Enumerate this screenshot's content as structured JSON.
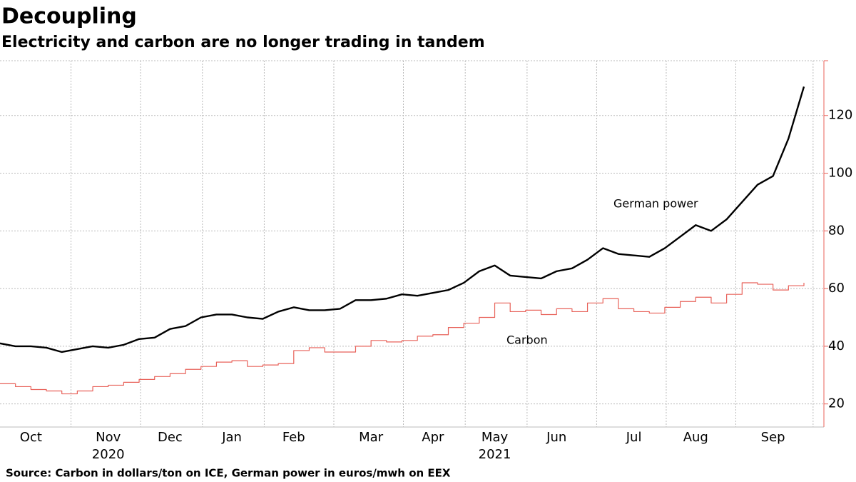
{
  "chart_data": {
    "type": "line",
    "title": "Decoupling",
    "subtitle": "Electricity and carbon are no longer trading in tandem",
    "source": "Source: Carbon in dollars/ton on ICE, German power in euros/mwh on EEX",
    "categories": [
      null,
      null,
      "Oct",
      null,
      null,
      null,
      null,
      "Nov",
      null,
      null,
      null,
      "Dec",
      null,
      null,
      null,
      "Jan",
      null,
      null,
      null,
      "Feb",
      null,
      null,
      null,
      null,
      "Mar",
      null,
      null,
      null,
      "Apr",
      null,
      null,
      null,
      "May",
      null,
      null,
      null,
      "Jun",
      null,
      null,
      null,
      null,
      "Jul",
      null,
      null,
      null,
      "Aug",
      null,
      null,
      null,
      null,
      "Sep",
      null,
      null
    ],
    "year_labels": [
      {
        "label": "2020",
        "category": 7
      },
      {
        "label": "2021",
        "category": 32
      }
    ],
    "series": [
      {
        "name": "German power",
        "color": "#000000",
        "step": false,
        "values": [
          41,
          40,
          40,
          39.5,
          38,
          39,
          40,
          39.5,
          40.5,
          42.5,
          43,
          46,
          47,
          50,
          51,
          51,
          50,
          49.5,
          52,
          53.5,
          52.5,
          52.5,
          53,
          56,
          56,
          56.5,
          58,
          57.5,
          58.5,
          59.5,
          62,
          66,
          68,
          64.5,
          64,
          63.5,
          66,
          67,
          70,
          74,
          72,
          71.5,
          71,
          74,
          78,
          82,
          80,
          84,
          90,
          96,
          99,
          112,
          130
        ]
      },
      {
        "name": "Carbon",
        "color": "#e8625a",
        "label_color": "#e8a33d",
        "step": true,
        "values": [
          27,
          26,
          25,
          24.5,
          23.5,
          24.5,
          26,
          26.5,
          27.5,
          28.5,
          29.5,
          30.5,
          32,
          33,
          34.5,
          35,
          33,
          33.5,
          34,
          38.5,
          39.5,
          38,
          38,
          40,
          42,
          41.5,
          42,
          43.5,
          44,
          46.5,
          48,
          50,
          55,
          52,
          52.5,
          51,
          53,
          52,
          55,
          56.5,
          53,
          52,
          51.5,
          53.5,
          55.5,
          57,
          55,
          58,
          62,
          61.5,
          59.5,
          61,
          62
        ]
      }
    ],
    "ylim": [
      12,
      139
    ],
    "yticks": [
      20,
      40,
      60,
      80,
      100,
      120
    ],
    "axis_color": "#e8625a",
    "grid": true
  }
}
